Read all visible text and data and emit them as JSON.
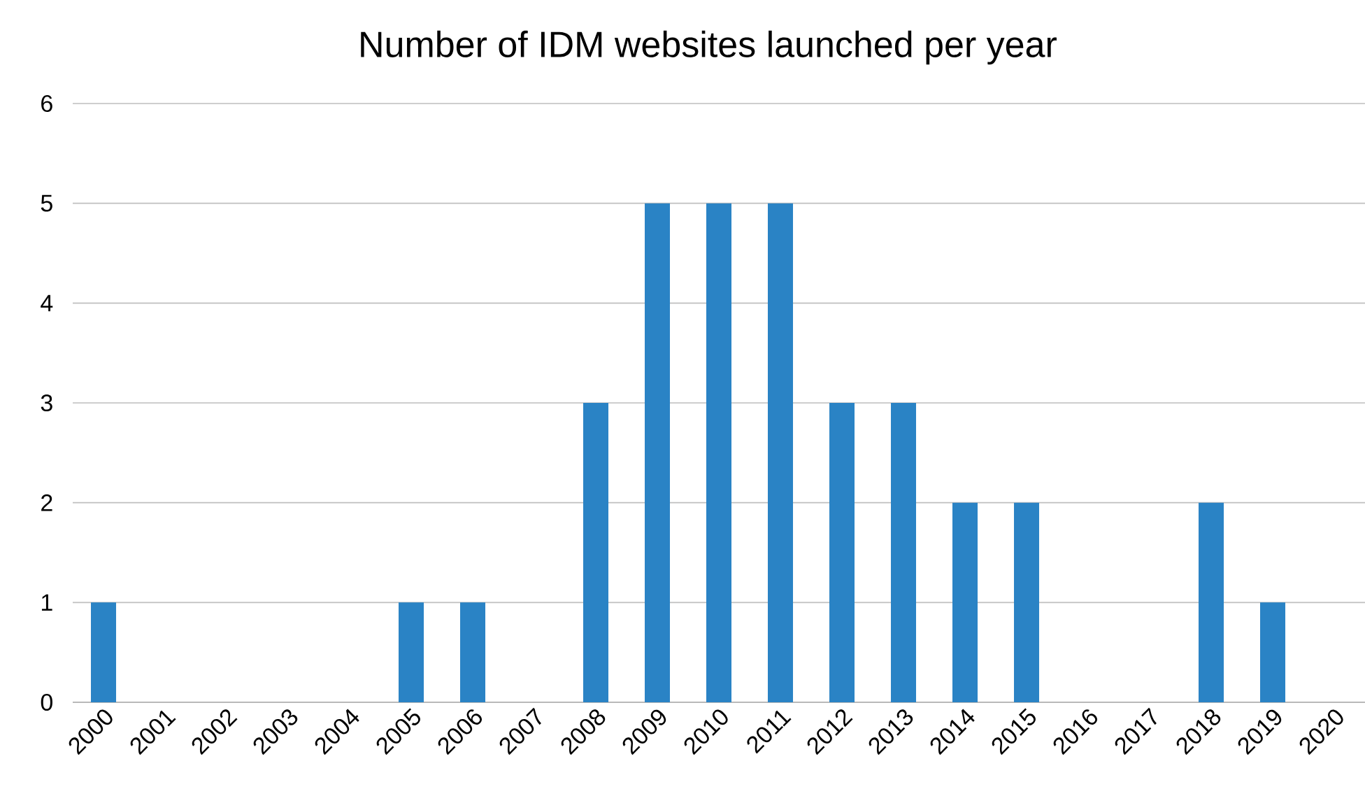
{
  "chart_data": {
    "type": "bar",
    "title": "Number of IDM websites launched per year",
    "categories": [
      "2000",
      "2001",
      "2002",
      "2003",
      "2004",
      "2005",
      "2006",
      "2007",
      "2008",
      "2009",
      "2010",
      "2011",
      "2012",
      "2013",
      "2014",
      "2015",
      "2016",
      "2017",
      "2018",
      "2019",
      "2020"
    ],
    "values": [
      1,
      0,
      0,
      0,
      0,
      1,
      1,
      0,
      3,
      5,
      5,
      5,
      3,
      3,
      2,
      2,
      0,
      0,
      2,
      1,
      0
    ],
    "color": "#2a83c5",
    "ylim": [
      0,
      6
    ],
    "yticks": [
      0,
      1,
      2,
      3,
      4,
      5,
      6
    ],
    "grid": "y"
  }
}
